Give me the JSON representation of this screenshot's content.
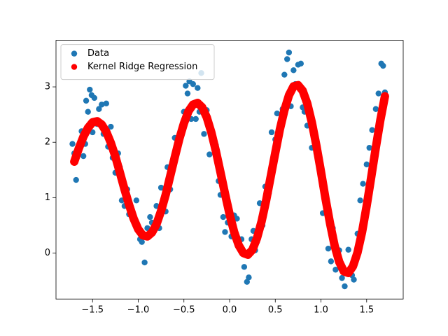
{
  "chart_data": {
    "type": "scatter",
    "xlim": [
      -1.9,
      1.9
    ],
    "ylim": [
      -0.83,
      3.84
    ],
    "xticks": [
      {
        "value": -1.5,
        "label": "−1.5"
      },
      {
        "value": -1.0,
        "label": "−1.0"
      },
      {
        "value": -0.5,
        "label": "−0.5"
      },
      {
        "value": 0,
        "label": "0.0"
      },
      0.5,
      {
        "value": 1.0,
        "label": "1.0"
      },
      1.5
    ],
    "yticks": [
      0,
      1,
      2,
      3
    ],
    "legend": "upper left",
    "series": [
      {
        "name": "Data",
        "color": "#1f77b4",
        "style": "points",
        "x": [
          -1.72,
          -1.7,
          -1.68,
          -1.65,
          -1.62,
          -1.6,
          -1.58,
          -1.57,
          -1.55,
          -1.53,
          -1.51,
          -1.48,
          -1.5,
          -1.45,
          -1.43,
          -1.4,
          -1.38,
          -1.35,
          -1.33,
          -1.3,
          -1.28,
          -1.25,
          -1.22,
          -1.2,
          -1.18,
          -1.15,
          -1.12,
          -1.1,
          -1.05,
          -1.02,
          -0.98,
          -0.96,
          -0.93,
          -0.9,
          -0.87,
          -0.85,
          -0.8,
          -0.77,
          -0.75,
          -0.7,
          -0.68,
          -0.65,
          -0.6,
          -0.57,
          -0.53,
          -0.5,
          -0.48,
          -0.46,
          -0.44,
          -0.42,
          -0.4,
          -0.37,
          -0.35,
          -0.33,
          -0.31,
          -0.28,
          -0.25,
          -0.22,
          -0.18,
          -0.15,
          -0.12,
          -0.1,
          -0.07,
          -0.05,
          -0.02,
          0.02,
          0.05,
          0.08,
          0.1,
          0.13,
          0.16,
          0.19,
          0.21,
          0.24,
          0.26,
          0.28,
          0.3,
          0.33,
          0.36,
          0.39,
          0.43,
          0.46,
          0.5,
          0.52,
          0.55,
          0.58,
          0.6,
          0.63,
          0.65,
          0.67,
          0.7,
          0.72,
          0.75,
          0.78,
          0.8,
          0.82,
          0.85,
          0.88,
          0.9,
          0.95,
          1.0,
          1.02,
          1.05,
          1.08,
          1.11,
          1.13,
          1.16,
          1.2,
          1.23,
          1.26,
          1.3,
          1.34,
          1.36,
          1.4,
          1.43,
          1.46,
          1.5,
          1.53,
          1.56,
          1.6,
          1.63,
          1.66,
          1.68,
          1.7
        ],
        "values": [
          1.97,
          1.8,
          1.32,
          1.9,
          2.2,
          1.75,
          1.97,
          2.75,
          2.55,
          2.95,
          2.85,
          2.8,
          2.18,
          2.33,
          2.6,
          2.68,
          2.15,
          2.7,
          1.92,
          2.28,
          1.72,
          1.45,
          1.8,
          1.55,
          0.95,
          0.85,
          1.15,
          0.7,
          0.65,
          0.95,
          0.25,
          0.2,
          -0.17,
          0.45,
          0.65,
          0.55,
          0.85,
          0.45,
          1.18,
          0.75,
          1.55,
          1.15,
          2.08,
          1.85,
          2.2,
          2.55,
          3.02,
          2.88,
          3.1,
          2.42,
          3.05,
          2.42,
          2.98,
          2.55,
          3.25,
          2.15,
          2.58,
          1.78,
          2.05,
          1.95,
          1.3,
          1.05,
          0.65,
          0.38,
          0.55,
          0.3,
          0.68,
          0.62,
          0.1,
          0.25,
          -0.25,
          -0.52,
          -0.44,
          0.25,
          0.4,
          0.05,
          0.2,
          0.9,
          0.5,
          1.2,
          1.08,
          2.18,
          2.05,
          2.52,
          2.15,
          2.6,
          3.22,
          3.5,
          3.62,
          2.65,
          3.3,
          3.05,
          3.4,
          3.42,
          2.63,
          2.55,
          2.3,
          2.47,
          1.9,
          1.8,
          1.4,
          0.72,
          0.95,
          0.08,
          -0.15,
          0.45,
          -0.3,
          0.05,
          -0.45,
          -0.6,
          0.06,
          -0.4,
          -0.48,
          0.35,
          0.95,
          1.25,
          1.6,
          1.9,
          2.22,
          2.6,
          2.88,
          3.42,
          3.38,
          2.9
        ]
      },
      {
        "name": "Kernel Ridge Regression",
        "color": "#ff0000",
        "style": "dense",
        "x": [
          -1.7,
          -1.65,
          -1.6,
          -1.55,
          -1.5,
          -1.45,
          -1.4,
          -1.35,
          -1.3,
          -1.25,
          -1.2,
          -1.15,
          -1.1,
          -1.05,
          -1.0,
          -0.95,
          -0.9,
          -0.85,
          -0.8,
          -0.75,
          -0.7,
          -0.65,
          -0.6,
          -0.55,
          -0.5,
          -0.45,
          -0.4,
          -0.35,
          -0.3,
          -0.25,
          -0.2,
          -0.15,
          -0.1,
          -0.05,
          0.0,
          0.05,
          0.1,
          0.15,
          0.2,
          0.25,
          0.3,
          0.35,
          0.4,
          0.45,
          0.5,
          0.55,
          0.6,
          0.65,
          0.7,
          0.75,
          0.8,
          0.85,
          0.9,
          0.95,
          1.0,
          1.05,
          1.1,
          1.15,
          1.2,
          1.25,
          1.3,
          1.35,
          1.4,
          1.45,
          1.5,
          1.55,
          1.6,
          1.65,
          1.7
        ],
        "values": [
          1.65,
          1.89,
          2.1,
          2.26,
          2.36,
          2.38,
          2.32,
          2.19,
          1.99,
          1.74,
          1.45,
          1.15,
          0.87,
          0.62,
          0.43,
          0.32,
          0.3,
          0.37,
          0.52,
          0.76,
          1.05,
          1.39,
          1.73,
          2.06,
          2.34,
          2.56,
          2.68,
          2.71,
          2.63,
          2.45,
          2.18,
          1.84,
          1.46,
          1.07,
          0.7,
          0.38,
          0.14,
          0.0,
          -0.03,
          0.06,
          0.27,
          0.57,
          0.95,
          1.38,
          1.81,
          2.23,
          2.58,
          2.85,
          3.01,
          3.03,
          2.93,
          2.7,
          2.36,
          1.94,
          1.47,
          0.98,
          0.53,
          0.13,
          -0.16,
          -0.33,
          -0.36,
          -0.24,
          0.01,
          0.38,
          0.85,
          1.37,
          1.9,
          2.4,
          2.83
        ]
      }
    ]
  }
}
